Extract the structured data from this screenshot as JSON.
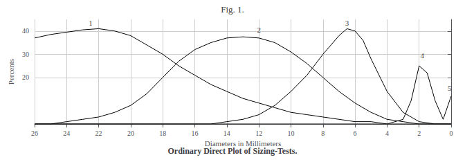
{
  "chart_data": {
    "type": "line",
    "title": "Fig. 1.",
    "subtitle": "Ordinary Direct Plot of Sizing-Tests.",
    "xlabel": "Diameters in Millimeters",
    "ylabel": "Percents",
    "xlim": [
      26,
      0
    ],
    "ylim": [
      0,
      45
    ],
    "xticks": [
      26,
      24,
      22,
      20,
      18,
      16,
      14,
      12,
      10,
      8,
      6,
      4,
      2,
      0
    ],
    "yticks": [
      20,
      30,
      40
    ],
    "grid": true,
    "series": [
      {
        "color": "#000000",
        "x": [
          26,
          25,
          24,
          23,
          22,
          21,
          20,
          19,
          18,
          17,
          16,
          15,
          14,
          13,
          12,
          11,
          10,
          9,
          8,
          7,
          6,
          5,
          4,
          3,
          2,
          1,
          0
        ],
        "values": [
          37,
          38.5,
          39.5,
          40.5,
          41,
          40,
          38,
          34,
          30,
          25,
          21,
          17,
          14,
          11,
          9,
          7,
          5,
          4,
          3,
          2,
          1,
          1,
          0,
          0,
          0,
          0,
          0
        ]
      },
      {
        "color": "#000000",
        "x": [
          26,
          25,
          24,
          23,
          22,
          21,
          20,
          19,
          18,
          17,
          16,
          15,
          14,
          13,
          12,
          11,
          10,
          9,
          8,
          7,
          6,
          5,
          4,
          3,
          2,
          1,
          0
        ],
        "values": [
          0,
          0,
          1,
          2,
          3,
          5,
          8,
          13,
          20,
          27,
          32,
          35,
          37,
          37.5,
          37,
          35,
          31,
          26,
          20,
          14,
          9,
          5,
          2,
          1,
          0,
          0,
          0
        ]
      },
      {
        "color": "#000000",
        "x": [
          26,
          25,
          24,
          23,
          22,
          21,
          20,
          19,
          18,
          17,
          16,
          15,
          14,
          13,
          12,
          11,
          10,
          9,
          8,
          7,
          6.5,
          6,
          5.5,
          5,
          4,
          3,
          2,
          1,
          0
        ],
        "values": [
          0,
          0,
          0,
          0,
          0,
          0,
          0,
          0,
          0,
          0,
          0,
          0,
          1,
          2,
          4,
          8,
          14,
          21,
          30,
          38,
          41,
          40,
          36,
          28,
          14,
          5,
          1,
          0,
          0
        ]
      },
      {
        "color": "#000000",
        "x": [
          26,
          5,
          4,
          3,
          2.5,
          2,
          1.5,
          1,
          0.5,
          0
        ],
        "values": [
          0,
          0,
          0,
          2,
          10,
          25,
          22,
          10,
          2,
          12
        ]
      }
    ],
    "annotations": [
      {
        "text": "1",
        "x": 22.5,
        "y": 42
      },
      {
        "text": "2",
        "x": 12.0,
        "y": 39
      },
      {
        "text": "3",
        "x": 6.5,
        "y": 42
      },
      {
        "text": "4",
        "x": 1.8,
        "y": 28
      },
      {
        "text": "5",
        "x": 0.1,
        "y": 14
      }
    ]
  }
}
